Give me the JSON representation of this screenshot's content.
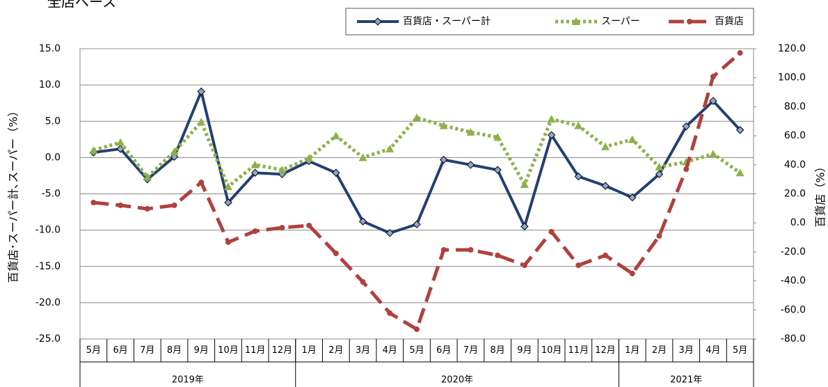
{
  "chart_data": {
    "type": "line",
    "title": "全店ベース",
    "y_label": "百貨店･スーパー計､スーパー（%）",
    "y2_label": "百貨店（%）",
    "categories": [
      "5月",
      "6月",
      "7月",
      "8月",
      "9月",
      "10月",
      "11月",
      "12月",
      "1月",
      "2月",
      "3月",
      "4月",
      "5月",
      "6月",
      "7月",
      "8月",
      "9月",
      "10月",
      "11月",
      "12月",
      "1月",
      "2月",
      "3月",
      "4月",
      "5月"
    ],
    "year_labels": [
      "2019年",
      null,
      null,
      null,
      null,
      null,
      null,
      null,
      "2020年",
      null,
      null,
      null,
      null,
      null,
      null,
      null,
      null,
      null,
      null,
      null,
      "2021年",
      null,
      null,
      null,
      null
    ],
    "ylim": [
      -25,
      15
    ],
    "yticks": [
      {
        "value": -25,
        "label": "-25.0"
      },
      {
        "value": -20,
        "label": "-20.0"
      },
      {
        "value": -15,
        "label": "-15.0"
      },
      {
        "value": -10,
        "label": "-10.0"
      },
      {
        "value": -5,
        "label": "-5.0"
      },
      {
        "value": 0,
        "label": "0.0"
      },
      {
        "value": 5,
        "label": "5.0"
      },
      {
        "value": 10,
        "label": "10.0"
      },
      {
        "value": 15,
        "label": "15.0"
      }
    ],
    "y2lim": [
      -80,
      120
    ],
    "y2ticks": [
      {
        "value": -80,
        "label": "-80.0"
      },
      {
        "value": -60,
        "label": "-60.0"
      },
      {
        "value": -40,
        "label": "-40.0"
      },
      {
        "value": -20,
        "label": "-20.0"
      },
      {
        "value": 0,
        "label": "0.0"
      },
      {
        "value": 20,
        "label": "20.0"
      },
      {
        "value": 40,
        "label": "40.0"
      },
      {
        "value": 60,
        "label": "60.0"
      },
      {
        "value": 80,
        "label": "80.0"
      },
      {
        "value": 100,
        "label": "100.0"
      },
      {
        "value": 120,
        "label": "120.0"
      }
    ],
    "grid": true,
    "legend": "top-right",
    "series": [
      {
        "name": "百貨店・スーパー計",
        "color": "#243f73",
        "style": "solid",
        "marker": "diamond",
        "values": [
          0.7,
          1.2,
          -3.0,
          0.1,
          9.1,
          -6.2,
          -2.1,
          -2.3,
          -0.5,
          -2.1,
          -8.8,
          -10.4,
          -9.2,
          -0.3,
          -1.0,
          -1.7,
          -9.5,
          3.1,
          -2.6,
          -3.9,
          -5.5,
          -2.3,
          4.3,
          7.8,
          3.8
        ]
      },
      {
        "name": "スーパー",
        "color": "#8db04a",
        "style": "dotted",
        "marker": "triangle",
        "values": [
          1.0,
          2.1,
          -2.7,
          0.8,
          4.9,
          -4.0,
          -1.0,
          -1.7,
          -0.1,
          3.0,
          0.0,
          1.2,
          5.5,
          4.4,
          3.5,
          2.8,
          -3.7,
          5.3,
          4.4,
          1.5,
          2.5,
          -1.3,
          -0.6,
          0.5,
          -2.1
        ]
      },
      {
        "name": "百貨店",
        "color": "#b0413e",
        "style": "dashed",
        "marker": "circle",
        "axis": "y2",
        "values": [
          14.0,
          12.1,
          9.7,
          12.1,
          27.9,
          -13.3,
          -5.7,
          -3.3,
          -1.8,
          -21.0,
          -40.7,
          -62.2,
          -73.3,
          -18.6,
          -18.6,
          -22.4,
          -29.2,
          -6.1,
          -29.2,
          -22.4,
          -34.9,
          -9.0,
          37.0,
          100.8,
          117.1
        ]
      }
    ]
  }
}
